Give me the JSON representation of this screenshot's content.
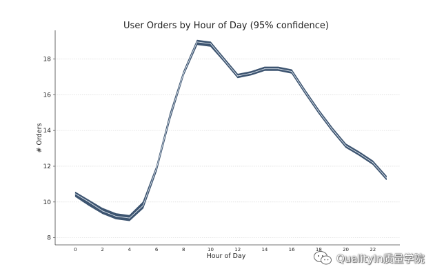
{
  "chart_data": {
    "type": "line",
    "title": "User Orders by Hour of Day (95% confidence)",
    "xlabel": "Hour of Day",
    "ylabel": "# Orders",
    "xlim": [
      -1.5,
      24
    ],
    "ylim": [
      7.6,
      19.6
    ],
    "x_ticks": [
      0,
      2,
      4,
      6,
      8,
      10,
      12,
      14,
      16,
      18,
      20,
      22
    ],
    "x_tick_labels": [
      "0",
      "2",
      "4",
      "6",
      "8",
      "10",
      "12",
      "14",
      "16",
      "18",
      "20",
      "22"
    ],
    "y_ticks": [
      8,
      10,
      12,
      14,
      16,
      18
    ],
    "y_tick_labels": [
      "8",
      "10",
      "12",
      "14",
      "16",
      "18"
    ],
    "grid": "horizontal dotted",
    "series": [
      {
        "name": "# Orders",
        "x": [
          0,
          1,
          2,
          3,
          4,
          5,
          6,
          7,
          8,
          9,
          10,
          11,
          12,
          13,
          14,
          15,
          16,
          17,
          18,
          19,
          20,
          21,
          22,
          23
        ],
        "mean": [
          10.45,
          10.0,
          9.5,
          9.2,
          9.1,
          9.8,
          11.9,
          14.8,
          17.2,
          18.95,
          18.85,
          17.95,
          17.05,
          17.2,
          17.45,
          17.45,
          17.3,
          16.15,
          15.05,
          14.05,
          13.15,
          12.7,
          12.2,
          11.35
        ],
        "lower": [
          10.3,
          9.8,
          9.35,
          9.05,
          8.95,
          9.65,
          11.75,
          14.65,
          17.1,
          18.8,
          18.7,
          17.85,
          16.95,
          17.1,
          17.35,
          17.35,
          17.2,
          16.05,
          14.95,
          13.95,
          13.05,
          12.6,
          12.1,
          11.25
        ],
        "upper": [
          10.55,
          10.1,
          9.65,
          9.35,
          9.25,
          10.0,
          12.0,
          14.95,
          17.3,
          19.05,
          18.95,
          18.05,
          17.15,
          17.3,
          17.55,
          17.55,
          17.4,
          16.25,
          15.15,
          14.15,
          13.25,
          12.8,
          12.3,
          11.45
        ]
      }
    ],
    "watermark": "QualityIn质量学院"
  }
}
